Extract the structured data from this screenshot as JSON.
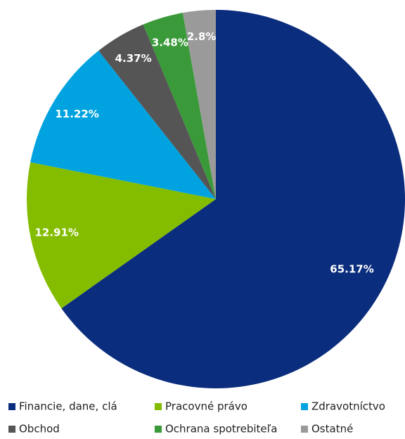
{
  "chart_data": {
    "type": "pie",
    "categories": [
      "Financie, dane, clá",
      "Pracovné právo",
      "Zdravotníctvo",
      "Obchod",
      "Ochrana spotrebiteľa",
      "Ostatné"
    ],
    "values": [
      65.17,
      12.91,
      11.22,
      4.37,
      3.48,
      2.8
    ],
    "value_labels": [
      "65.17%",
      "12.91%",
      "11.22%",
      "4.37%",
      "3.48%",
      "2.8%"
    ],
    "colors": [
      "#0b2d7d",
      "#84bd00",
      "#00a3e0",
      "#555555",
      "#3a9a3a",
      "#9a9a9a"
    ],
    "legend": "bottom"
  }
}
